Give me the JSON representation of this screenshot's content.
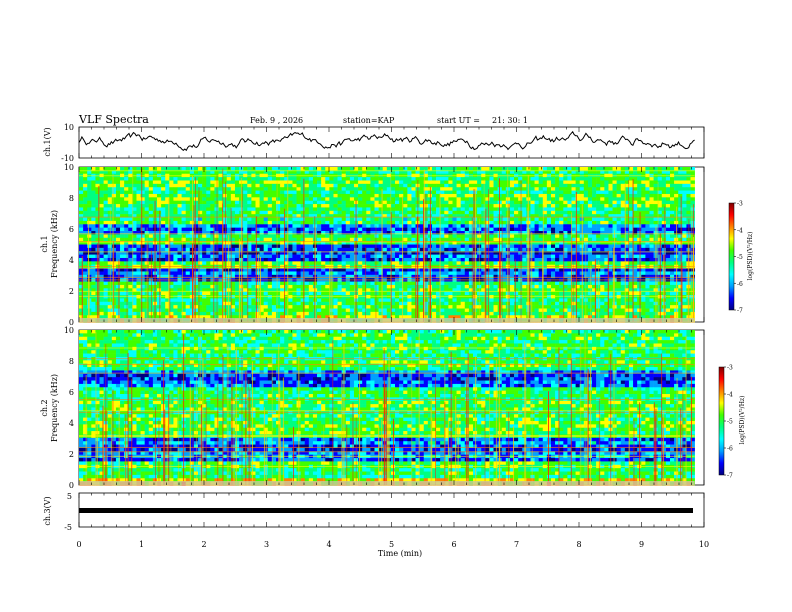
{
  "header": {
    "title": "VLF Spectra",
    "date": "Feb. 9 , 2026",
    "station": "station=KAP",
    "start_label": "start  UT  =",
    "start_time": "21: 30: 1"
  },
  "colors": {
    "trace": "#000000",
    "colormap": [
      "#00007f",
      "#0000ff",
      "#00a0ff",
      "#00ffff",
      "#00ff80",
      "#40ff00",
      "#ffff00",
      "#ff8000",
      "#ff0000",
      "#7f0000"
    ]
  },
  "chart_data": [
    {
      "type": "line",
      "id": "ch1-waveform",
      "ylabel": "ch.1(V)",
      "ylim": [
        -10,
        10
      ],
      "yticks": [
        "10",
        "-10"
      ],
      "xlim": [
        0,
        10
      ],
      "x_end": 9.85,
      "samples": 420,
      "amplitude_range": [
        -5,
        7
      ]
    },
    {
      "type": "heatmap",
      "id": "ch1-spectrogram",
      "ylabel_channel": "ch.1",
      "ylabel": "Frequency  (kHz)",
      "ylim": [
        0,
        10
      ],
      "yticks": [
        "0",
        "2",
        "4",
        "6",
        "8",
        "10"
      ],
      "xlim": [
        0,
        10
      ],
      "x_end": 9.85,
      "dark_bands_khz": [
        [
          2.7,
          3.4
        ],
        [
          3.9,
          5.0
        ],
        [
          5.6,
          6.4
        ]
      ],
      "colorbar": {
        "label": "log(PSD)(V²/Hz)",
        "range": [
          -7,
          -3
        ],
        "ticks": [
          "-3",
          "-4",
          "-5",
          "-6",
          "-7"
        ]
      }
    },
    {
      "type": "heatmap",
      "id": "ch2-spectrogram",
      "ylabel_channel": "ch.2",
      "ylabel": "Frequency  (kHz)",
      "ylim": [
        0,
        10
      ],
      "yticks": [
        "0",
        "2",
        "4",
        "6",
        "8",
        "10"
      ],
      "xlim": [
        0,
        10
      ],
      "x_end": 9.85,
      "dark_bands_khz": [
        [
          1.5,
          3.0
        ],
        [
          6.2,
          7.3
        ]
      ],
      "colorbar": {
        "label": "log(PSD)(V²/Hz)",
        "range": [
          -7,
          -3
        ],
        "ticks": [
          "-3",
          "-4",
          "-5",
          "-6",
          "-7"
        ]
      }
    },
    {
      "type": "line",
      "id": "ch3-waveform",
      "ylabel": "ch.3(V)",
      "ylim": [
        -5,
        5
      ],
      "yticks": [
        "5",
        "-5"
      ],
      "xlim": [
        0,
        10
      ],
      "x_end": 9.85,
      "constant_value": 0,
      "xlabel": "Time  (min)",
      "xticks": [
        "0",
        "1",
        "2",
        "3",
        "4",
        "5",
        "6",
        "7",
        "8",
        "9",
        "10"
      ]
    }
  ]
}
